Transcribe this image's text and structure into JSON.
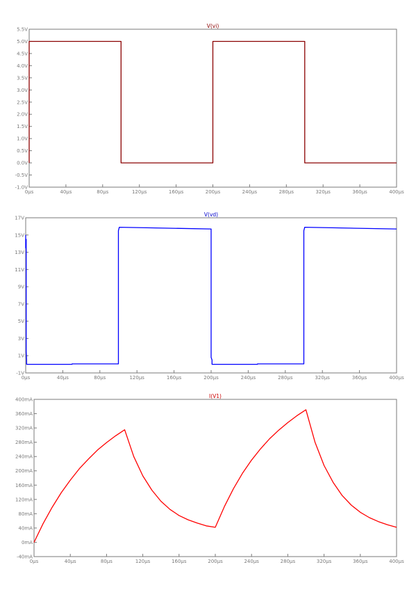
{
  "chart_data": [
    {
      "type": "line",
      "title": "V(vi)",
      "title_color": "#8b0000",
      "xlim": [
        0,
        400
      ],
      "ylim": [
        -1.0,
        5.5
      ],
      "x_tick_labels": [
        "0µs",
        "40µs",
        "80µs",
        "120µs",
        "160µs",
        "200µs",
        "240µs",
        "280µs",
        "320µs",
        "360µs",
        "400µs"
      ],
      "x_ticks": [
        0,
        40,
        80,
        120,
        160,
        200,
        240,
        280,
        320,
        360,
        400
      ],
      "y_tick_labels": [
        "5.5V",
        "5.0V",
        "4.5V",
        "4.0V",
        "3.5V",
        "3.0V",
        "2.5V",
        "2.0V",
        "1.5V",
        "1.0V",
        "0.5V",
        "0.0V",
        "-0.5V",
        "-1.0V"
      ],
      "y_ticks": [
        5.5,
        5.0,
        4.5,
        4.0,
        3.5,
        3.0,
        2.5,
        2.0,
        1.5,
        1.0,
        0.5,
        0.0,
        -0.5,
        -1.0
      ],
      "grid": false,
      "series": [
        {
          "name": "V(vi)",
          "color": "#8b0000",
          "x": [
            0,
            0,
            100,
            100,
            200,
            200,
            300,
            300,
            400
          ],
          "y": [
            0,
            5,
            5,
            0,
            0,
            5,
            5,
            0,
            0
          ]
        }
      ]
    },
    {
      "type": "line",
      "title": "V(vd)",
      "title_color": "#0000cc",
      "xlim": [
        0,
        400
      ],
      "ylim": [
        -1,
        17
      ],
      "x_tick_labels": [
        "0µs",
        "40µs",
        "80µs",
        "120µs",
        "160µs",
        "200µs",
        "240µs",
        "280µs",
        "320µs",
        "360µs",
        "400µs"
      ],
      "x_ticks": [
        0,
        40,
        80,
        120,
        160,
        200,
        240,
        280,
        320,
        360,
        400
      ],
      "y_tick_labels": [
        "17V",
        "15V",
        "13V",
        "11V",
        "9V",
        "7V",
        "5V",
        "3V",
        "1V",
        "-1V"
      ],
      "y_ticks": [
        17,
        15,
        13,
        11,
        9,
        7,
        5,
        3,
        1,
        -1
      ],
      "grid": false,
      "series": [
        {
          "name": "V(vd)",
          "color": "#0000ff",
          "x": [
            0,
            0,
            0.5,
            0.5,
            1,
            1,
            50,
            50,
            100,
            100,
            101,
            150,
            200,
            200,
            201,
            201,
            250,
            250,
            300,
            300,
            301,
            350,
            400
          ],
          "y": [
            15,
            13.5,
            14.5,
            1.5,
            0.5,
            0,
            0,
            0.05,
            0.05,
            15.5,
            15.9,
            15.8,
            15.7,
            0.8,
            0.5,
            0,
            0,
            0.05,
            0.05,
            15.5,
            15.9,
            15.8,
            15.7
          ]
        }
      ]
    },
    {
      "type": "line",
      "title": "I(V1)",
      "title_color": "#cc0000",
      "xlim": [
        0,
        400
      ],
      "ylim": [
        -40,
        400
      ],
      "x_tick_labels": [
        "0µs",
        "40µs",
        "80µs",
        "120µs",
        "160µs",
        "200µs",
        "240µs",
        "280µs",
        "320µs",
        "360µs",
        "400µs"
      ],
      "x_ticks": [
        0,
        40,
        80,
        120,
        160,
        200,
        240,
        280,
        320,
        360,
        400
      ],
      "y_tick_labels": [
        "400mA",
        "360mA",
        "320mA",
        "280mA",
        "240mA",
        "200mA",
        "160mA",
        "120mA",
        "80mA",
        "40mA",
        "0mA",
        "-40mA"
      ],
      "y_ticks": [
        400,
        360,
        320,
        280,
        240,
        200,
        160,
        120,
        80,
        40,
        0,
        -40
      ],
      "grid": false,
      "series": [
        {
          "name": "I(V1)",
          "color": "#ff0000",
          "x": [
            0,
            10,
            20,
            30,
            40,
            50,
            60,
            70,
            80,
            90,
            100,
            110,
            120,
            130,
            140,
            150,
            160,
            170,
            180,
            190,
            200,
            210,
            220,
            230,
            240,
            250,
            260,
            270,
            280,
            290,
            300,
            310,
            320,
            330,
            340,
            350,
            360,
            370,
            380,
            390,
            400
          ],
          "y": [
            0,
            52,
            98,
            139,
            174,
            206,
            233,
            258,
            279,
            298,
            315,
            240,
            186,
            146,
            115,
            92,
            75,
            63,
            54,
            46,
            42,
            100,
            150,
            193,
            230,
            262,
            290,
            314,
            335,
            354,
            371,
            280,
            215,
            168,
            131,
            104,
            84,
            69,
            58,
            49,
            42
          ]
        }
      ]
    }
  ]
}
